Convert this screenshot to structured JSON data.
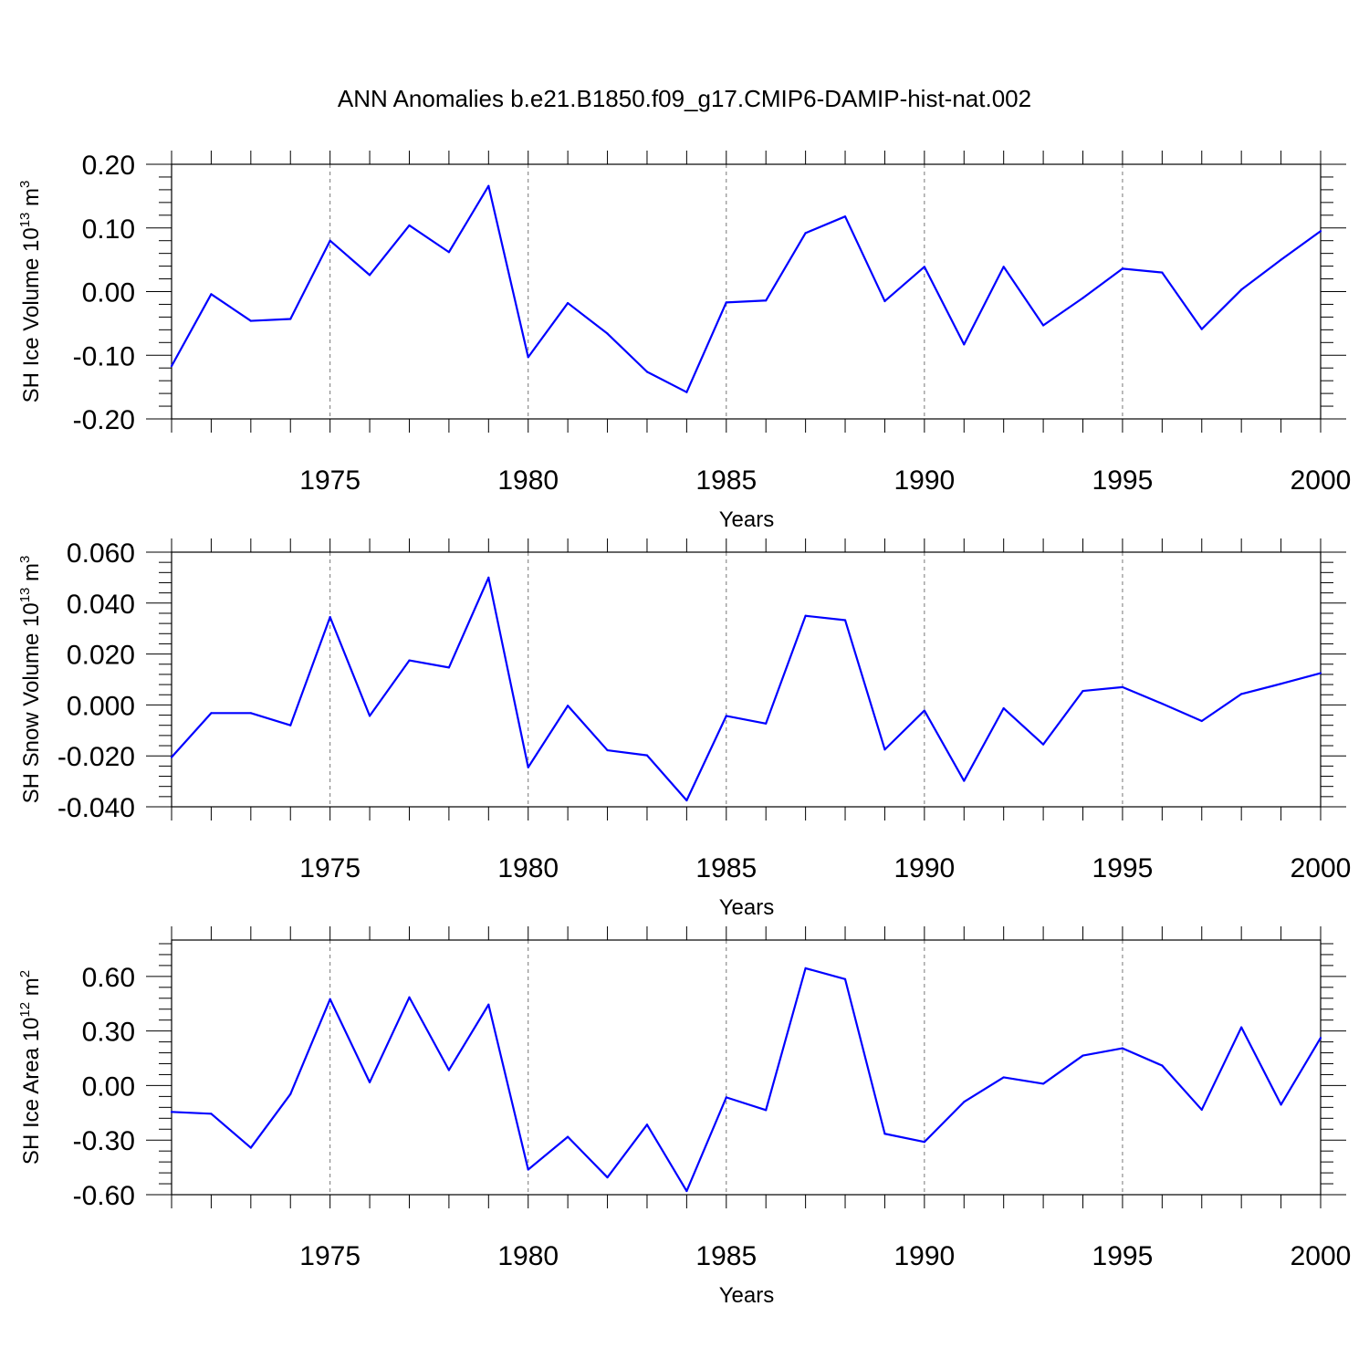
{
  "figure": {
    "title": "ANN Anomalies b.e21.B1850.f09_g17.CMIP6-DAMIP-hist-nat.002"
  },
  "chart_data": [
    {
      "type": "line",
      "title": "",
      "xlabel": "Years",
      "ylabel_main": "SH Ice Volume 10",
      "ylabel_sup1": "13",
      "ylabel_mid": " m",
      "ylabel_sup2": "3",
      "xlim": [
        1971,
        2000
      ],
      "ylim": [
        -0.2,
        0.2
      ],
      "x_ticks": [
        1975,
        1980,
        1985,
        1990,
        1995,
        2000
      ],
      "y_ticks": [
        -0.2,
        -0.1,
        0.0,
        0.1,
        0.2
      ],
      "y_tick_labels": [
        "-0.20",
        "-0.10",
        "0.00",
        "0.10",
        "0.20"
      ],
      "grid_x": true,
      "color": "#0000ff",
      "x": [
        1971,
        1972,
        1973,
        1974,
        1975,
        1976,
        1977,
        1978,
        1979,
        1980,
        1981,
        1982,
        1983,
        1984,
        1985,
        1986,
        1987,
        1988,
        1989,
        1990,
        1991,
        1992,
        1993,
        1994,
        1995,
        1996,
        1997,
        1998,
        1999,
        2000
      ],
      "values": [
        -0.117,
        -0.004,
        -0.046,
        -0.043,
        0.08,
        0.026,
        0.104,
        0.062,
        0.166,
        -0.103,
        -0.018,
        -0.066,
        -0.126,
        -0.158,
        -0.017,
        -0.014,
        0.092,
        0.118,
        -0.015,
        0.039,
        -0.083,
        0.039,
        -0.053,
        -0.01,
        0.036,
        0.03,
        -0.059,
        0.003,
        0.05,
        0.095
      ]
    },
    {
      "type": "line",
      "title": "",
      "xlabel": "Years",
      "ylabel_main": "SH Snow Volume 10",
      "ylabel_sup1": "13",
      "ylabel_mid": " m",
      "ylabel_sup2": "3",
      "xlim": [
        1971,
        2000
      ],
      "ylim": [
        -0.04,
        0.06
      ],
      "x_ticks": [
        1975,
        1980,
        1985,
        1990,
        1995,
        2000
      ],
      "y_ticks": [
        -0.04,
        -0.02,
        0.0,
        0.02,
        0.04,
        0.06
      ],
      "y_tick_labels": [
        "-0.040",
        "-0.020",
        "0.000",
        "0.020",
        "0.040",
        "0.060"
      ],
      "grid_x": true,
      "color": "#0000ff",
      "x": [
        1971,
        1972,
        1973,
        1974,
        1975,
        1976,
        1977,
        1978,
        1979,
        1980,
        1981,
        1982,
        1983,
        1984,
        1985,
        1986,
        1987,
        1988,
        1989,
        1990,
        1991,
        1992,
        1993,
        1994,
        1995,
        1996,
        1997,
        1998,
        1999,
        2000
      ],
      "values": [
        -0.0205,
        -0.0032,
        -0.0032,
        -0.008,
        0.0345,
        -0.0043,
        0.0175,
        0.0147,
        0.05,
        -0.0245,
        -0.0003,
        -0.0178,
        -0.0198,
        -0.0375,
        -0.0043,
        -0.0073,
        0.035,
        0.0333,
        -0.0175,
        -0.0022,
        -0.0298,
        -0.0013,
        -0.0155,
        0.0055,
        0.007,
        0.0005,
        -0.0063,
        0.0043,
        0.0083,
        0.0125
      ]
    },
    {
      "type": "line",
      "title": "",
      "xlabel": "Years",
      "ylabel_main": "SH Ice Area 10",
      "ylabel_sup1": "12",
      "ylabel_mid": " m",
      "ylabel_sup2": "2",
      "xlim": [
        1971,
        2000
      ],
      "ylim": [
        -0.6,
        0.8
      ],
      "x_ticks": [
        1975,
        1980,
        1985,
        1990,
        1995,
        2000
      ],
      "y_ticks": [
        -0.6,
        -0.3,
        0.0,
        0.3,
        0.6
      ],
      "y_tick_labels": [
        "-0.60",
        "-0.30",
        "0.00",
        "0.30",
        "0.60"
      ],
      "grid_x": true,
      "color": "#0000ff",
      "x": [
        1971,
        1972,
        1973,
        1974,
        1975,
        1976,
        1977,
        1978,
        1979,
        1980,
        1981,
        1982,
        1983,
        1984,
        1985,
        1986,
        1987,
        1988,
        1989,
        1990,
        1991,
        1992,
        1993,
        1994,
        1995,
        1996,
        1997,
        1998,
        1999,
        2000
      ],
      "values": [
        -0.145,
        -0.155,
        -0.342,
        -0.047,
        0.475,
        0.018,
        0.485,
        0.085,
        0.445,
        -0.462,
        -0.282,
        -0.505,
        -0.215,
        -0.58,
        -0.065,
        -0.135,
        0.645,
        0.585,
        -0.265,
        -0.31,
        -0.09,
        0.045,
        0.01,
        0.165,
        0.205,
        0.11,
        -0.133,
        0.32,
        -0.105,
        0.262
      ]
    }
  ]
}
